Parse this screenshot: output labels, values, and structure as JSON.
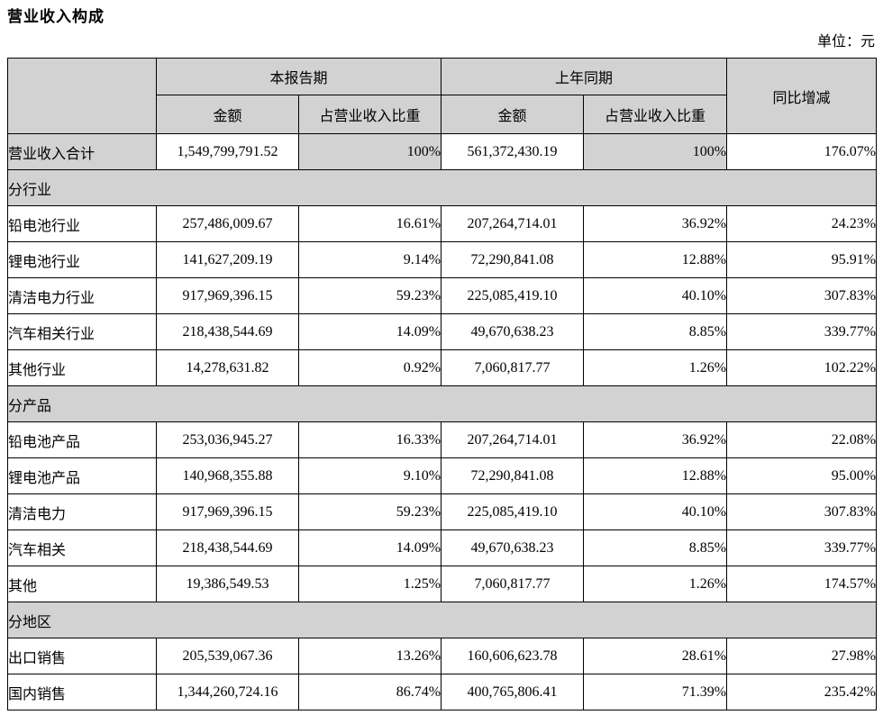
{
  "page": {
    "title": "营业收入构成",
    "unit_label": "单位：元"
  },
  "table": {
    "header": {
      "col_current": "本报告期",
      "col_prior": "上年同期",
      "col_yoy": "同比增减",
      "sub_amount": "金额",
      "sub_ratio": "占营业收入比重"
    },
    "colors": {
      "shaded_bg": "#d2d2d2",
      "border": "#000000",
      "text": "#000000"
    },
    "rows": [
      {
        "type": "total",
        "label": "营业收入合计",
        "cur_amount": "1,549,799,791.52",
        "cur_ratio": "100%",
        "prior_amount": "561,372,430.19",
        "prior_ratio": "100%",
        "yoy": "176.07%"
      },
      {
        "type": "section",
        "label": "分行业"
      },
      {
        "type": "data",
        "label": "铅电池行业",
        "cur_amount": "257,486,009.67",
        "cur_ratio": "16.61%",
        "prior_amount": "207,264,714.01",
        "prior_ratio": "36.92%",
        "yoy": "24.23%"
      },
      {
        "type": "data",
        "label": "锂电池行业",
        "cur_amount": "141,627,209.19",
        "cur_ratio": "9.14%",
        "prior_amount": "72,290,841.08",
        "prior_ratio": "12.88%",
        "yoy": "95.91%"
      },
      {
        "type": "data",
        "label": "清洁电力行业",
        "cur_amount": "917,969,396.15",
        "cur_ratio": "59.23%",
        "prior_amount": "225,085,419.10",
        "prior_ratio": "40.10%",
        "yoy": "307.83%"
      },
      {
        "type": "data",
        "label": "汽车相关行业",
        "cur_amount": "218,438,544.69",
        "cur_ratio": "14.09%",
        "prior_amount": "49,670,638.23",
        "prior_ratio": "8.85%",
        "yoy": "339.77%"
      },
      {
        "type": "data",
        "label": "其他行业",
        "cur_amount": "14,278,631.82",
        "cur_ratio": "0.92%",
        "prior_amount": "7,060,817.77",
        "prior_ratio": "1.26%",
        "yoy": "102.22%"
      },
      {
        "type": "section",
        "label": "分产品"
      },
      {
        "type": "data",
        "label": "铅电池产品",
        "cur_amount": "253,036,945.27",
        "cur_ratio": "16.33%",
        "prior_amount": "207,264,714.01",
        "prior_ratio": "36.92%",
        "yoy": "22.08%"
      },
      {
        "type": "data",
        "label": "锂电池产品",
        "cur_amount": "140,968,355.88",
        "cur_ratio": "9.10%",
        "prior_amount": "72,290,841.08",
        "prior_ratio": "12.88%",
        "yoy": "95.00%"
      },
      {
        "type": "data",
        "label": "清洁电力",
        "cur_amount": "917,969,396.15",
        "cur_ratio": "59.23%",
        "prior_amount": "225,085,419.10",
        "prior_ratio": "40.10%",
        "yoy": "307.83%"
      },
      {
        "type": "data",
        "label": "汽车相关",
        "cur_amount": "218,438,544.69",
        "cur_ratio": "14.09%",
        "prior_amount": "49,670,638.23",
        "prior_ratio": "8.85%",
        "yoy": "339.77%"
      },
      {
        "type": "data",
        "label": "其他",
        "cur_amount": "19,386,549.53",
        "cur_ratio": "1.25%",
        "prior_amount": "7,060,817.77",
        "prior_ratio": "1.26%",
        "yoy": "174.57%"
      },
      {
        "type": "section",
        "label": "分地区"
      },
      {
        "type": "data",
        "label": "出口销售",
        "cur_amount": "205,539,067.36",
        "cur_ratio": "13.26%",
        "prior_amount": "160,606,623.78",
        "prior_ratio": "28.61%",
        "yoy": "27.98%"
      },
      {
        "type": "data",
        "label": "国内销售",
        "cur_amount": "1,344,260,724.16",
        "cur_ratio": "86.74%",
        "prior_amount": "400,765,806.41",
        "prior_ratio": "71.39%",
        "yoy": "235.42%"
      }
    ]
  }
}
